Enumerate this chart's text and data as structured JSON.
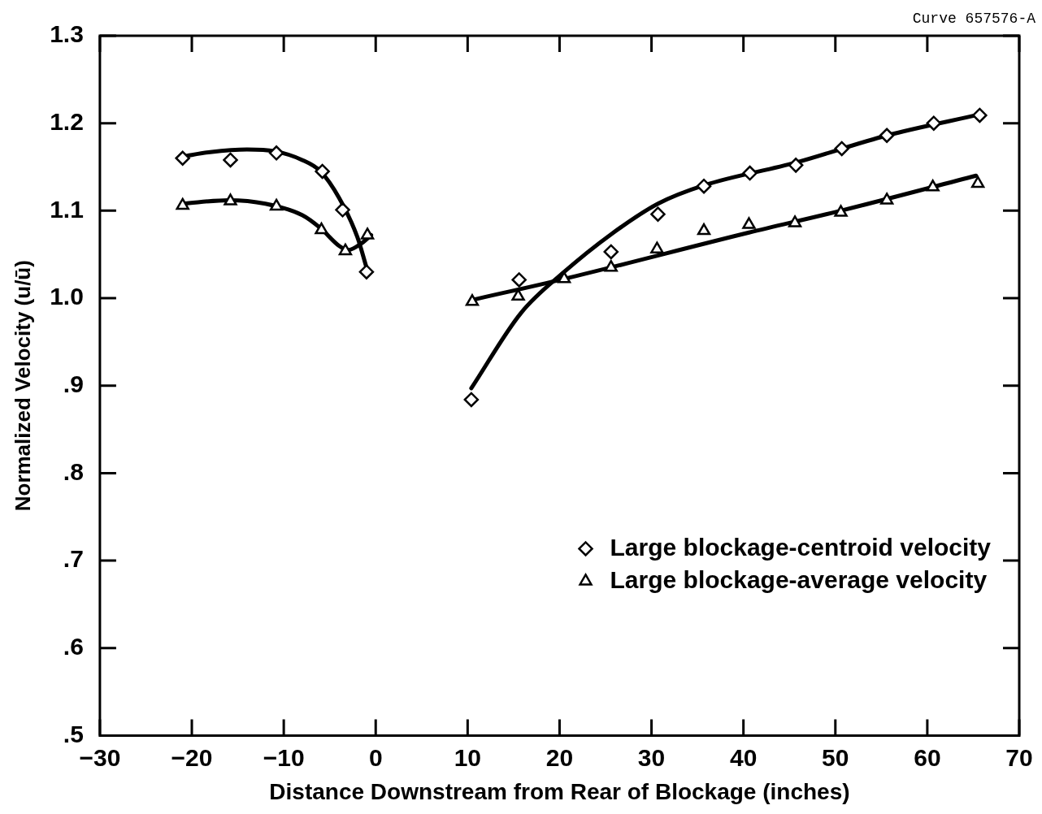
{
  "chart_data": {
    "type": "scatter",
    "xlabel": "Distance Downstream from Rear of Blockage (inches)",
    "ylabel": "Normalized Velocity (u/ū)",
    "annotations": [
      "Curve 657576-A"
    ],
    "xlim": [
      -30,
      70
    ],
    "xticks": [
      -30,
      -20,
      -10,
      0,
      10,
      20,
      30,
      40,
      50,
      60,
      70
    ],
    "ylim": [
      0.5,
      1.3
    ],
    "yticks": [
      {
        "value": 0.5,
        "label": ".5"
      },
      {
        "value": 0.6,
        "label": ".6"
      },
      {
        "value": 0.7,
        "label": ".7"
      },
      {
        "value": 0.8,
        "label": ".8"
      },
      {
        "value": 0.9,
        "label": ".9"
      },
      {
        "value": 1.0,
        "label": "1.0"
      },
      {
        "value": 1.1,
        "label": "1.1"
      },
      {
        "value": 1.2,
        "label": "1.2"
      },
      {
        "value": 1.3,
        "label": "1.3"
      }
    ],
    "grid": false,
    "legend": "bottom right",
    "series": [
      {
        "name": "Large blockage-centroid velocity",
        "marker": "diamond",
        "color": "#000000",
        "x": [
          -21,
          -15.8,
          -10.8,
          -5.8,
          -3.6,
          -1,
          10.4,
          15.6,
          25.6,
          30.7,
          35.7,
          40.7,
          45.7,
          50.7,
          55.6,
          60.7,
          65.7
        ],
        "values": [
          1.16,
          1.158,
          1.166,
          1.145,
          1.101,
          1.03,
          0.884,
          1.021,
          1.053,
          1.096,
          1.128,
          1.143,
          1.152,
          1.171,
          1.186,
          1.2,
          1.209
        ]
      },
      {
        "name": "Large blockage-average velocity",
        "marker": "triangle",
        "color": "#000000",
        "x": [
          -21,
          -15.8,
          -10.8,
          -5.9,
          -3.3,
          -0.9,
          10.5,
          15.5,
          20.5,
          25.6,
          30.6,
          35.7,
          40.6,
          45.6,
          50.6,
          55.6,
          60.6,
          65.5
        ],
        "values": [
          1.106,
          1.111,
          1.105,
          1.078,
          1.054,
          1.072,
          0.996,
          1.002,
          1.022,
          1.035,
          1.056,
          1.077,
          1.084,
          1.086,
          1.098,
          1.112,
          1.127,
          1.131
        ]
      },
      {
        "type": "line",
        "marker": "none",
        "color": "#000000",
        "x": [
          -21,
          -18,
          -14,
          -11,
          -8,
          -6,
          -4,
          -2,
          -1
        ],
        "values": [
          1.162,
          1.167,
          1.17,
          1.168,
          1.158,
          1.145,
          1.115,
          1.07,
          1.035
        ]
      },
      {
        "type": "line",
        "marker": "none",
        "color": "#000000",
        "x": [
          -21,
          -16,
          -12,
          -8,
          -6,
          -4,
          -3,
          -1.5,
          -0.5
        ],
        "values": [
          1.108,
          1.112,
          1.108,
          1.095,
          1.08,
          1.06,
          1.055,
          1.063,
          1.072
        ]
      },
      {
        "type": "line",
        "marker": "none",
        "color": "#000000",
        "x": [
          10.4,
          15.8,
          20.5,
          25.6,
          30.7,
          35.7,
          45.7,
          55.6,
          65.7
        ],
        "values": [
          0.897,
          0.983,
          1.03,
          1.073,
          1.108,
          1.129,
          1.155,
          1.186,
          1.21
        ]
      },
      {
        "type": "line",
        "marker": "none",
        "color": "#000000",
        "x": [
          10.5,
          20.5,
          40.6,
          50.6,
          65.3
        ],
        "values": [
          0.998,
          1.022,
          1.075,
          1.1,
          1.14
        ]
      }
    ]
  }
}
